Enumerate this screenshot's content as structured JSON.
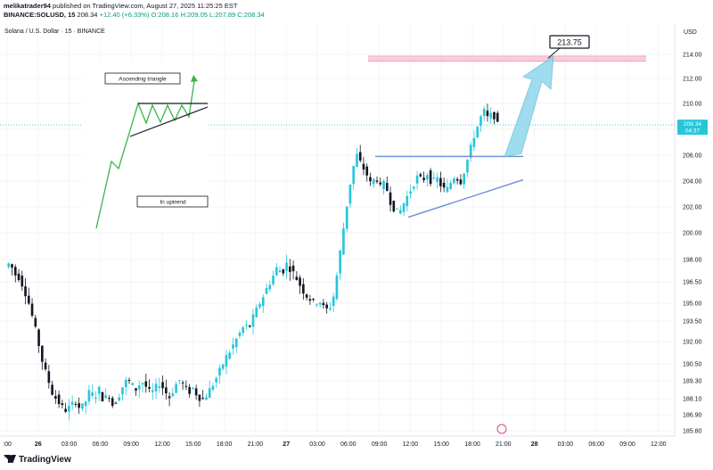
{
  "header": {
    "publisher": "melikatrader94",
    "published_text": "published on TradingView.com, August 27, 2025 11:25:25 EST",
    "symbol": "BINANCE:SOLUSD, 15",
    "last": "208.34",
    "change": "+12.40 (+6.33%)",
    "ohlc": "O:208.16 H:209.05 L:207.89 C:208.34"
  },
  "chart_data": {
    "type": "candlestick",
    "title": "Solana / U.S. Dollar · 15 · BINANCE",
    "currency": "USD",
    "x_ticks": [
      ":00",
      "26",
      "03:00",
      "06:00",
      "09:00",
      "12:00",
      "15:00",
      "18:00",
      "21:00",
      "27",
      "03:00",
      "06:00",
      "09:00",
      "12:00",
      "15:00",
      "18:00",
      "21:00",
      "28",
      "03:00",
      "06:00",
      "09:00",
      "12:00"
    ],
    "y_ticks": [
      "214.00",
      "212.00",
      "210.00",
      "208.00",
      "206.00",
      "204.00",
      "202.00",
      "200.00",
      "198.00",
      "196.50",
      "195.00",
      "193.50",
      "192.00",
      "190.50",
      "189.30",
      "188.10",
      "186.90",
      "185.80"
    ],
    "last_price_label": "208.34",
    "countdown_label": "04:37",
    "target_label": "213.75",
    "target_price": 213.75,
    "resistance_price": 205.9,
    "inset_labels": {
      "pattern": "Ascending triangle",
      "trend": "In uptrend"
    },
    "price_path": [
      197.5,
      197.8,
      197.0,
      196.8,
      196.0,
      195.0,
      193.5,
      192.0,
      190.5,
      189.5,
      188.5,
      188.0,
      187.5,
      187.2,
      187.6,
      187.9,
      187.3,
      187.8,
      188.6,
      188.2,
      188.7,
      187.9,
      188.5,
      187.5,
      188.2,
      188.9,
      189.4,
      189.0,
      188.7,
      189.3,
      188.9,
      188.4,
      188.8,
      189.2,
      188.6,
      188.2,
      188.8,
      189.4,
      189.0,
      188.5,
      188.8,
      188.3,
      188.0,
      188.4,
      188.9,
      189.5,
      190.2,
      190.9,
      191.4,
      192.0,
      192.6,
      193.2,
      193.0,
      194.0,
      194.8,
      195.5,
      196.2,
      196.8,
      197.5,
      197.1,
      197.7,
      197.3,
      196.8,
      196.2,
      195.6,
      195.3,
      195.0,
      195.2,
      194.6,
      194.4,
      195.5,
      197.5,
      200.0,
      202.5,
      204.8,
      206.0,
      205.2,
      204.6,
      203.7,
      204.4,
      203.5,
      203.9,
      202.5,
      201.8,
      201.5,
      202.3,
      203.0,
      203.7,
      204.4,
      204.0,
      204.6,
      203.8,
      204.3,
      203.6,
      203.2,
      203.9,
      204.5,
      203.8,
      204.9,
      206.2,
      207.5,
      208.5,
      209.5,
      208.8,
      209.3,
      208.34
    ]
  }
}
